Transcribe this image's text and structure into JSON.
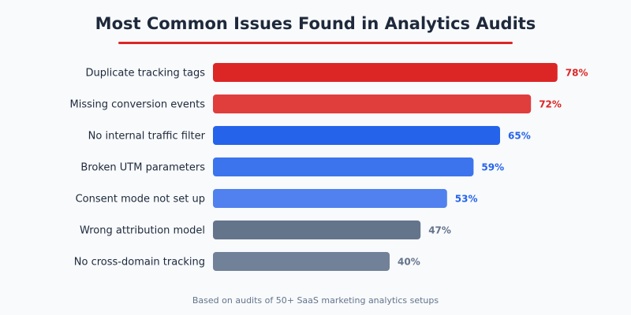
{
  "chart_data": {
    "type": "bar",
    "orientation": "horizontal",
    "title": "Most Common Issues Found in Analytics Audits",
    "categories": [
      "Duplicate tracking tags",
      "Missing conversion events",
      "No internal traffic filter",
      "Broken UTM parameters",
      "Consent mode not set up",
      "Wrong attribution model",
      "No cross-domain tracking"
    ],
    "values": [
      78,
      72,
      65,
      59,
      53,
      47,
      40
    ],
    "value_labels": [
      "78%",
      "72%",
      "65%",
      "59%",
      "53%",
      "47%",
      "40%"
    ],
    "bar_colors": [
      "#dc2626",
      "#e03d3d",
      "#2563eb",
      "#3b74ec",
      "#5081ee",
      "#64748b",
      "#718197"
    ],
    "label_colors": [
      "#dc2626",
      "#dc2626",
      "#2563eb",
      "#2563eb",
      "#2563eb",
      "#64748b",
      "#64748b"
    ],
    "xlim": [
      0,
      100
    ],
    "grid": false,
    "footnote": "Based on audits of 50+ SaaS marketing analytics setups"
  }
}
